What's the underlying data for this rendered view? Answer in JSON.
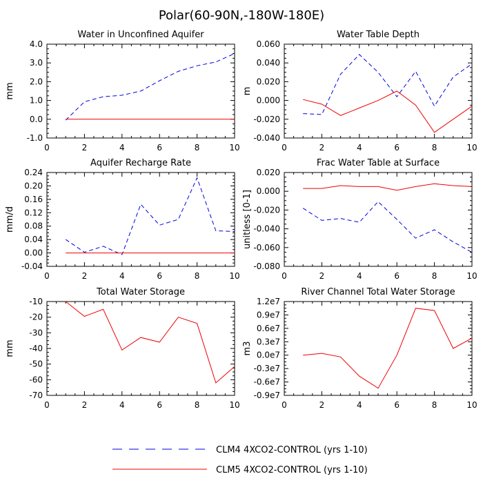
{
  "figure_title": "Polar(60-90N,-180W-180E)",
  "legend": [
    {
      "label": "CLM4 4XCO2-CONTROL (yrs 1-10)",
      "color": "#0000dd",
      "dashed": true
    },
    {
      "label": "CLM5 4XCO2-CONTROL (yrs 1-10)",
      "color": "#ee0000",
      "dashed": false
    }
  ],
  "chart_data": [
    {
      "type": "line",
      "title": "Water in Unconfined Aquifer",
      "xlabel": "",
      "ylabel": "mm",
      "xlim": [
        0,
        10
      ],
      "ylim": [
        -1.0,
        4.0
      ],
      "xticks": [
        0,
        2,
        4,
        6,
        8,
        10
      ],
      "xtick_labels": [
        "0",
        "2",
        "4",
        "6",
        "8",
        "10"
      ],
      "yticks": [
        -1.0,
        0.0,
        1.0,
        2.0,
        3.0,
        4.0
      ],
      "ytick_labels": [
        "-1.0",
        "0.0",
        "1.0",
        "2.0",
        "3.0",
        "4.0"
      ],
      "x": [
        1,
        2,
        3,
        4,
        5,
        6,
        7,
        8,
        9,
        10
      ],
      "series": [
        {
          "name": "CLM4 4XCO2-CONTROL (yrs 1-10)",
          "values": [
            -0.05,
            0.93,
            1.2,
            1.28,
            1.5,
            2.05,
            2.55,
            2.85,
            3.05,
            3.5
          ]
        },
        {
          "name": "CLM5 4XCO2-CONTROL (yrs 1-10)",
          "values": [
            0.0,
            0.0,
            0.0,
            0.0,
            0.0,
            0.0,
            0.0,
            0.0,
            0.0,
            0.0
          ]
        }
      ]
    },
    {
      "type": "line",
      "title": "Water Table Depth",
      "xlabel": "",
      "ylabel": "m",
      "xlim": [
        0,
        10
      ],
      "ylim": [
        -0.04,
        0.06
      ],
      "xticks": [
        0,
        2,
        4,
        6,
        8,
        10
      ],
      "xtick_labels": [
        "0",
        "2",
        "4",
        "6",
        "8",
        "10"
      ],
      "yticks": [
        -0.04,
        -0.02,
        0.0,
        0.02,
        0.04,
        0.06
      ],
      "ytick_labels": [
        "-0.040",
        "-0.020",
        "0.000",
        "0.020",
        "0.040",
        "0.060"
      ],
      "x": [
        1,
        2,
        3,
        4,
        5,
        6,
        7,
        8,
        9,
        10
      ],
      "series": [
        {
          "name": "CLM4 4XCO2-CONTROL (yrs 1-10)",
          "values": [
            -0.014,
            -0.015,
            0.028,
            0.049,
            0.03,
            0.004,
            0.031,
            -0.006,
            0.025,
            0.039
          ]
        },
        {
          "name": "CLM5 4XCO2-CONTROL (yrs 1-10)",
          "values": [
            0.001,
            -0.004,
            -0.016,
            -0.008,
            0.0,
            0.01,
            -0.005,
            -0.034,
            -0.02,
            -0.006
          ]
        }
      ]
    },
    {
      "type": "line",
      "title": "Aquifer Recharge Rate",
      "xlabel": "",
      "ylabel": "mm/d",
      "xlim": [
        0,
        10
      ],
      "ylim": [
        -0.04,
        0.24
      ],
      "xticks": [
        0,
        2,
        4,
        6,
        8,
        10
      ],
      "xtick_labels": [
        "0",
        "2",
        "4",
        "6",
        "8",
        "10"
      ],
      "yticks": [
        -0.04,
        0.0,
        0.04,
        0.08,
        0.12,
        0.16,
        0.2,
        0.24
      ],
      "ytick_labels": [
        "-0.04",
        "0.00",
        "0.04",
        "0.08",
        "0.12",
        "0.16",
        "0.20",
        "0.24"
      ],
      "x": [
        1,
        2,
        3,
        4,
        5,
        6,
        7,
        8,
        9,
        10
      ],
      "series": [
        {
          "name": "CLM4 4XCO2-CONTROL (yrs 1-10)",
          "values": [
            0.04,
            0.002,
            0.02,
            -0.005,
            0.145,
            0.083,
            0.1,
            0.224,
            0.066,
            0.064
          ]
        },
        {
          "name": "CLM5 4XCO2-CONTROL (yrs 1-10)",
          "values": [
            0.0,
            0.0,
            0.0,
            0.0,
            0.0,
            0.0,
            0.0,
            0.0,
            0.0,
            0.0
          ]
        }
      ]
    },
    {
      "type": "line",
      "title": "Frac Water Table at Surface",
      "xlabel": "",
      "ylabel": "unitless [0-1]",
      "xlim": [
        0,
        10
      ],
      "ylim": [
        -0.08,
        0.02
      ],
      "xticks": [
        0,
        2,
        4,
        6,
        8,
        10
      ],
      "xtick_labels": [
        "0",
        "2",
        "4",
        "6",
        "8",
        "10"
      ],
      "yticks": [
        -0.08,
        -0.06,
        -0.04,
        -0.02,
        0.0,
        0.02
      ],
      "ytick_labels": [
        "-0.080",
        "-0.060",
        "-0.040",
        "-0.020",
        "0.000",
        "0.020"
      ],
      "x": [
        1,
        2,
        3,
        4,
        5,
        6,
        7,
        8,
        9,
        10
      ],
      "series": [
        {
          "name": "CLM4 4XCO2-CONTROL (yrs 1-10)",
          "values": [
            -0.018,
            -0.031,
            -0.029,
            -0.033,
            -0.011,
            -0.03,
            -0.05,
            -0.041,
            -0.054,
            -0.065
          ]
        },
        {
          "name": "CLM5 4XCO2-CONTROL (yrs 1-10)",
          "values": [
            0.003,
            0.003,
            0.006,
            0.005,
            0.005,
            0.001,
            0.005,
            0.008,
            0.006,
            0.005
          ]
        }
      ]
    },
    {
      "type": "line",
      "title": "Total Water Storage",
      "xlabel": "",
      "ylabel": "mm",
      "xlim": [
        0,
        10
      ],
      "ylim": [
        -70,
        -10
      ],
      "xticks": [
        0,
        2,
        4,
        6,
        8,
        10
      ],
      "xtick_labels": [
        "0",
        "2",
        "4",
        "6",
        "8",
        "10"
      ],
      "yticks": [
        -70,
        -60,
        -50,
        -40,
        -30,
        -20,
        -10
      ],
      "ytick_labels": [
        "-70",
        "-60",
        "-50",
        "-40",
        "-30",
        "-20",
        "-10"
      ],
      "x": [
        1,
        2,
        3,
        4,
        5,
        6,
        7,
        8,
        9,
        10
      ],
      "series": [
        {
          "name": "CLM5 4XCO2-CONTROL (yrs 1-10)",
          "values": [
            -10.0,
            -19.5,
            -15.0,
            -41.0,
            -33.0,
            -36.0,
            -20.0,
            -24.0,
            -62.0,
            -51.5
          ]
        }
      ]
    },
    {
      "type": "line",
      "title": "River Channel Total Water Storage",
      "xlabel": "",
      "ylabel": "m3",
      "xlim": [
        0,
        10
      ],
      "ylim": [
        -9000000,
        12000000
      ],
      "xticks": [
        0,
        2,
        4,
        6,
        8,
        10
      ],
      "xtick_labels": [
        "0",
        "2",
        "4",
        "6",
        "8",
        "10"
      ],
      "yticks": [
        -9000000,
        -6000000,
        -3000000,
        0,
        3000000,
        6000000,
        9000000,
        12000000
      ],
      "ytick_labels": [
        "-0.9e7",
        "-0.6e7",
        "-0.3e7",
        "0.0e7",
        "0.3e7",
        "0.6e7",
        "0.9e7",
        "1.2e7"
      ],
      "x": [
        1,
        2,
        3,
        4,
        5,
        6,
        7,
        8,
        9,
        10
      ],
      "series": [
        {
          "name": "CLM5 4XCO2-CONTROL (yrs 1-10)",
          "values": [
            0.0,
            400000,
            -400000,
            -4700000,
            -7400000,
            0.0,
            10500000,
            10000000,
            1500000,
            3800000
          ]
        }
      ]
    }
  ]
}
